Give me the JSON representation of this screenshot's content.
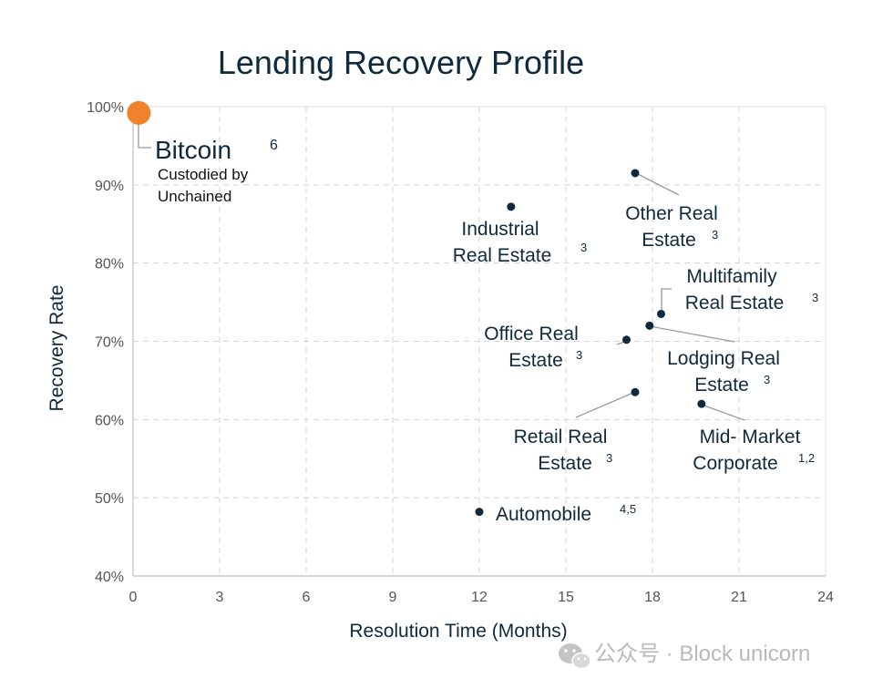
{
  "chart_data": {
    "type": "scatter",
    "title": "Lending Recovery Profile",
    "xlabel": "Resolution Time (Months)",
    "ylabel": "Recovery Rate",
    "xlim": [
      0,
      24
    ],
    "ylim": [
      40,
      100
    ],
    "x_ticks": [
      "0",
      "3",
      "6",
      "9",
      "12",
      "15",
      "18",
      "21",
      "24"
    ],
    "y_ticks": [
      "40%",
      "50%",
      "60%",
      "70%",
      "80%",
      "90%",
      "100%"
    ],
    "grid": true,
    "points": [
      {
        "label": "Bitcoin",
        "sup": "6",
        "sublabel": "Custodied by Unchained",
        "x": 0.2,
        "y": 99.2,
        "highlight": true,
        "color": "#f0822c"
      },
      {
        "label": "Industrial Real Estate",
        "sup": "3",
        "x": 13.1,
        "y": 87.2
      },
      {
        "label": "Other Real Estate",
        "sup": "3",
        "x": 17.4,
        "y": 91.5
      },
      {
        "label": "Multifamily Real Estate",
        "sup": "3",
        "x": 18.3,
        "y": 73.5
      },
      {
        "label": "Lodging Real Estate",
        "sup": "3",
        "x": 17.9,
        "y": 72.0
      },
      {
        "label": "Office Real Estate",
        "sup": "3",
        "x": 17.1,
        "y": 70.2
      },
      {
        "label": "Retail Real Estate",
        "sup": "3",
        "x": 17.4,
        "y": 63.5
      },
      {
        "label": "Mid- Market Corporate",
        "sup": "1,2",
        "x": 19.7,
        "y": 62.0
      },
      {
        "label": "Automobile",
        "sup": "4,5",
        "x": 12.0,
        "y": 48.2
      }
    ],
    "point_color": "#0f2a3d"
  },
  "watermark": {
    "text": "公众号 · Block unicorn",
    "icon": "wechat-icon"
  }
}
